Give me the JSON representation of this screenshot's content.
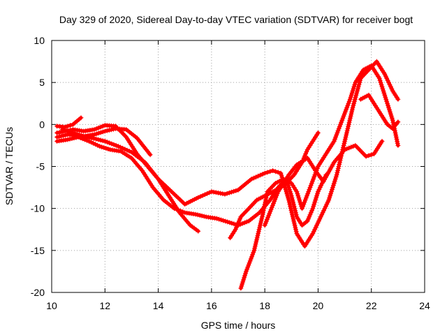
{
  "chart_data": {
    "type": "line",
    "title": "Day 329 of 2020, Sidereal Day-to-day VTEC variation (SDTVAR) for receiver bogt",
    "xlabel": "GPS time / hours",
    "ylabel": "SDTVAR / TECUs",
    "xlim": [
      10,
      24
    ],
    "ylim": [
      -20,
      10
    ],
    "xticks": [
      10,
      12,
      14,
      16,
      18,
      20,
      22,
      24
    ],
    "yticks": [
      -20,
      -15,
      -10,
      -5,
      0,
      5,
      10
    ],
    "grid": true,
    "legend": "none",
    "marker": "plus",
    "color": "#ff0000",
    "series": [
      {
        "x": [
          10.2,
          10.5,
          10.8,
          11.2,
          11.6,
          12.0,
          12.4,
          12.8,
          13.2,
          13.6,
          14.0,
          14.4,
          14.8,
          15.2,
          15.5
        ],
        "y": [
          -1.0,
          -0.8,
          -0.6,
          -0.8,
          -0.6,
          -0.1,
          -0.2,
          -1.5,
          -3.5,
          -5.0,
          -6.5,
          -8.5,
          -10.5,
          -12.0,
          -12.7
        ]
      },
      {
        "x": [
          10.2,
          10.6,
          11.0,
          11.4,
          11.8,
          12.2,
          12.6,
          13.0,
          13.4,
          13.8,
          14.2,
          14.6,
          15.0,
          15.4,
          15.8,
          16.2,
          16.6,
          17.0,
          17.4,
          17.8,
          18.2,
          18.5,
          18.8,
          19.0,
          19.2,
          19.4,
          19.6,
          19.8,
          20.0,
          20.3
        ],
        "y": [
          -2.0,
          -1.8,
          -1.5,
          -2.0,
          -2.6,
          -3.0,
          -3.2,
          -4.0,
          -5.5,
          -7.5,
          -9.0,
          -10.0,
          -10.5,
          -10.7,
          -11.0,
          -11.2,
          -11.6,
          -12.0,
          -11.5,
          -10.5,
          -9.0,
          -7.5,
          -6.5,
          -8.5,
          -11.0,
          -12.0,
          -11.5,
          -10.0,
          -8.0,
          -6.0
        ]
      },
      {
        "x": [
          10.2,
          10.5,
          10.8,
          11.1
        ],
        "y": [
          -0.2,
          -0.3,
          0.0,
          0.8
        ]
      },
      {
        "x": [
          10.4,
          10.8,
          11.2,
          11.6,
          12.0,
          12.4,
          12.8,
          13.2,
          13.7
        ],
        "y": [
          -0.6,
          -1.0,
          -1.4,
          -1.2,
          -0.8,
          -0.5,
          -0.6,
          -1.6,
          -3.6
        ]
      },
      {
        "x": [
          10.2,
          10.6,
          11.0,
          11.5,
          12.0,
          12.5,
          13.0,
          13.5,
          14.0,
          14.5,
          15.0,
          15.5,
          16.0,
          16.5,
          17.0,
          17.5,
          18.0,
          18.3,
          18.6,
          18.9,
          19.2,
          19.5,
          19.8,
          20.1,
          20.4,
          20.7,
          21.0,
          21.3,
          21.6,
          21.9,
          22.2,
          22.5,
          22.8,
          23.0
        ],
        "y": [
          -1.5,
          -1.2,
          -1.3,
          -1.6,
          -2.0,
          -2.6,
          -3.3,
          -4.5,
          -6.5,
          -8.0,
          -9.5,
          -8.7,
          -8.0,
          -8.3,
          -7.8,
          -6.5,
          -5.8,
          -5.5,
          -5.8,
          -9.0,
          -13.0,
          -14.5,
          -13.0,
          -11.0,
          -9.0,
          -6.0,
          -2.0,
          2.0,
          5.5,
          6.5,
          7.5,
          6.0,
          4.0,
          3.0
        ]
      },
      {
        "x": [
          16.7,
          16.9,
          17.1,
          17.4,
          17.7,
          18.0,
          18.3,
          18.6,
          18.8,
          19.1,
          19.4,
          19.6,
          19.8,
          20.0
        ],
        "y": [
          -13.5,
          -12.5,
          -11.0,
          -10.0,
          -9.0,
          -8.5,
          -8.0,
          -7.5,
          -7.0,
          -6.0,
          -4.5,
          -3.0,
          -2.0,
          -1.0
        ]
      },
      {
        "x": [
          17.1,
          17.3,
          17.6,
          17.9,
          18.1,
          18.4,
          18.7,
          19.0,
          19.2,
          19.4,
          19.7,
          20.0,
          20.3,
          20.6,
          20.9,
          21.2,
          21.4,
          21.7,
          22.0,
          22.3,
          22.6,
          22.8,
          23.0
        ],
        "y": [
          -19.5,
          -17.5,
          -15.0,
          -11.0,
          -8.0,
          -7.0,
          -6.5,
          -7.0,
          -8.0,
          -10.0,
          -7.5,
          -5.0,
          -3.5,
          -2.0,
          0.5,
          3.0,
          5.0,
          6.5,
          7.0,
          5.5,
          2.5,
          0.5,
          -2.5
        ]
      },
      {
        "x": [
          18.0,
          18.5,
          18.9,
          19.2,
          19.6,
          19.9,
          20.2,
          20.6,
          21.0,
          21.4,
          21.8,
          22.1,
          22.4
        ],
        "y": [
          -12.0,
          -8.0,
          -6.0,
          -4.8,
          -4.0,
          -5.5,
          -6.8,
          -4.5,
          -3.0,
          -2.5,
          -3.8,
          -3.5,
          -2.0
        ]
      },
      {
        "x": [
          21.6,
          21.9,
          22.1,
          22.3,
          22.6,
          22.8,
          23.0
        ],
        "y": [
          3.0,
          3.5,
          2.5,
          1.5,
          0.0,
          -0.5,
          0.3
        ]
      }
    ]
  }
}
